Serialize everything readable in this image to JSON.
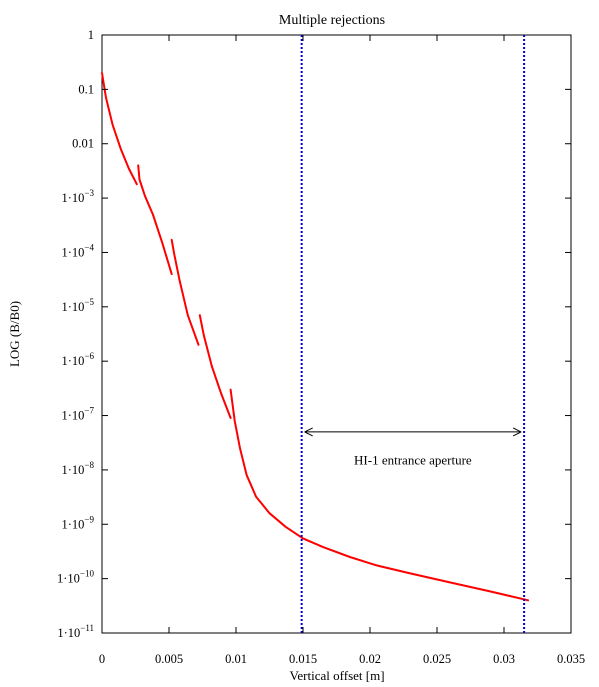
{
  "chart_data": {
    "type": "line",
    "title": "Multiple rejections",
    "xlabel": "Vertical offset [m]",
    "ylabel": "LOG (B/B0)",
    "xscale": "linear",
    "yscale": "log",
    "xlim": [
      0,
      0.035
    ],
    "ylim": [
      1e-11,
      1
    ],
    "grid": false,
    "x_ticks": [
      {
        "value": 0,
        "label": "0"
      },
      {
        "value": 0.005,
        "label": "0.005"
      },
      {
        "value": 0.01,
        "label": "0.01"
      },
      {
        "value": 0.015,
        "label": "0.015"
      },
      {
        "value": 0.02,
        "label": "0.02"
      },
      {
        "value": 0.025,
        "label": "0.025"
      },
      {
        "value": 0.03,
        "label": "0.03"
      },
      {
        "value": 0.035,
        "label": "0.035"
      }
    ],
    "y_ticks": [
      {
        "value": 1,
        "label": "1",
        "sup": ""
      },
      {
        "value": 0.1,
        "label": "0.1",
        "sup": ""
      },
      {
        "value": 0.01,
        "label": "0.01",
        "sup": ""
      },
      {
        "value": 0.001,
        "label": "1·10",
        "sup": "−3"
      },
      {
        "value": 0.0001,
        "label": "1·10",
        "sup": "−4"
      },
      {
        "value": 1e-05,
        "label": "1·10",
        "sup": "−5"
      },
      {
        "value": 1e-06,
        "label": "1·10",
        "sup": "−6"
      },
      {
        "value": 1e-07,
        "label": "1·10",
        "sup": "−7"
      },
      {
        "value": 1e-08,
        "label": "1·10",
        "sup": "−8"
      },
      {
        "value": 1e-09,
        "label": "1·10",
        "sup": "−9"
      },
      {
        "value": 1e-10,
        "label": "1·10",
        "sup": "−10"
      },
      {
        "value": 1e-11,
        "label": "1·10",
        "sup": "−11"
      }
    ],
    "series": [
      {
        "color": "#ff0000",
        "segments": [
          [
            [
              0.0,
              0.2
            ],
            [
              0.0003,
              0.07
            ],
            [
              0.0008,
              0.022
            ],
            [
              0.0014,
              0.008
            ],
            [
              0.002,
              0.0035
            ],
            [
              0.0026,
              0.0018
            ]
          ],
          [
            [
              0.0027,
              0.004
            ],
            [
              0.0028,
              0.0022
            ],
            [
              0.0032,
              0.0011
            ],
            [
              0.0038,
              0.0005
            ],
            [
              0.0045,
              0.00015
            ],
            [
              0.0052,
              4e-05
            ]
          ],
          [
            [
              0.0052,
              0.00017
            ],
            [
              0.0054,
              9e-05
            ],
            [
              0.0058,
              3e-05
            ],
            [
              0.0064,
              7e-06
            ],
            [
              0.0072,
              2e-06
            ]
          ],
          [
            [
              0.0073,
              7e-06
            ],
            [
              0.0076,
              3e-06
            ],
            [
              0.0082,
              8e-07
            ],
            [
              0.0089,
              2.5e-07
            ],
            [
              0.0096,
              9e-08
            ]
          ],
          [
            [
              0.0096,
              3e-07
            ],
            [
              0.0099,
              8e-08
            ],
            [
              0.0103,
              2.5e-08
            ],
            [
              0.0108,
              8e-09
            ],
            [
              0.0115,
              3.2e-09
            ],
            [
              0.0125,
              1.6e-09
            ],
            [
              0.0137,
              9e-10
            ],
            [
              0.015,
              5.5e-10
            ],
            [
              0.0165,
              3.8e-10
            ],
            [
              0.0185,
              2.5e-10
            ],
            [
              0.0205,
              1.75e-10
            ],
            [
              0.023,
              1.25e-10
            ],
            [
              0.026,
              8.5e-11
            ],
            [
              0.029,
              5.8e-11
            ],
            [
              0.0318,
              4e-11
            ]
          ]
        ]
      }
    ],
    "vlines": [
      {
        "x": 0.0149,
        "color": "#0000cc",
        "style": "dotted"
      },
      {
        "x": 0.0315,
        "color": "#0000cc",
        "style": "dotted"
      }
    ],
    "annotations": [
      {
        "text": "HI-1 entrance aperture",
        "x": 0.0232,
        "y": 1.5e-08,
        "arrow_from": 0.0149,
        "arrow_to": 0.0315,
        "arrow_y": 5e-08
      }
    ]
  }
}
